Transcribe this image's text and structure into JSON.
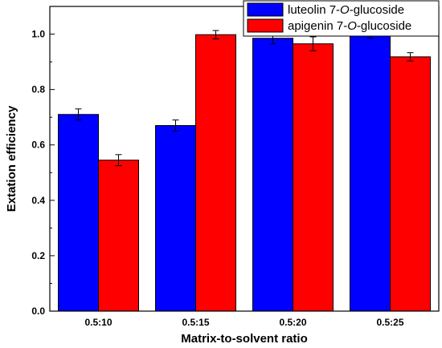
{
  "chart_data": {
    "type": "bar",
    "title": "",
    "xlabel": "Matrix-to-solvent ratio",
    "ylabel": "Extation efficiency",
    "categories": [
      "0.5:10",
      "0.5:15",
      "0.5:20",
      "0.5:25"
    ],
    "ylim": [
      0,
      1.1
    ],
    "yticks": [
      "0.0",
      "0.2",
      "0.4",
      "0.6",
      "0.8",
      "1.0"
    ],
    "grid": false,
    "legend_position": "top-right",
    "series": [
      {
        "name": "luteolin 7-O-glucoside",
        "name_parts": [
          "luteolin 7-",
          "O",
          "-glucoside"
        ],
        "color": "#0000ff",
        "values": [
          0.71,
          0.67,
          0.985,
          1.0
        ],
        "errors": [
          0.02,
          0.02,
          0.02,
          0.015
        ]
      },
      {
        "name": "apigenin 7-O-glucoside",
        "name_parts": [
          "apigenin 7-",
          "O",
          "-glucoside"
        ],
        "color": "#ff0000",
        "values": [
          0.545,
          0.998,
          0.965,
          0.918
        ],
        "errors": [
          0.02,
          0.015,
          0.025,
          0.015
        ]
      }
    ]
  }
}
